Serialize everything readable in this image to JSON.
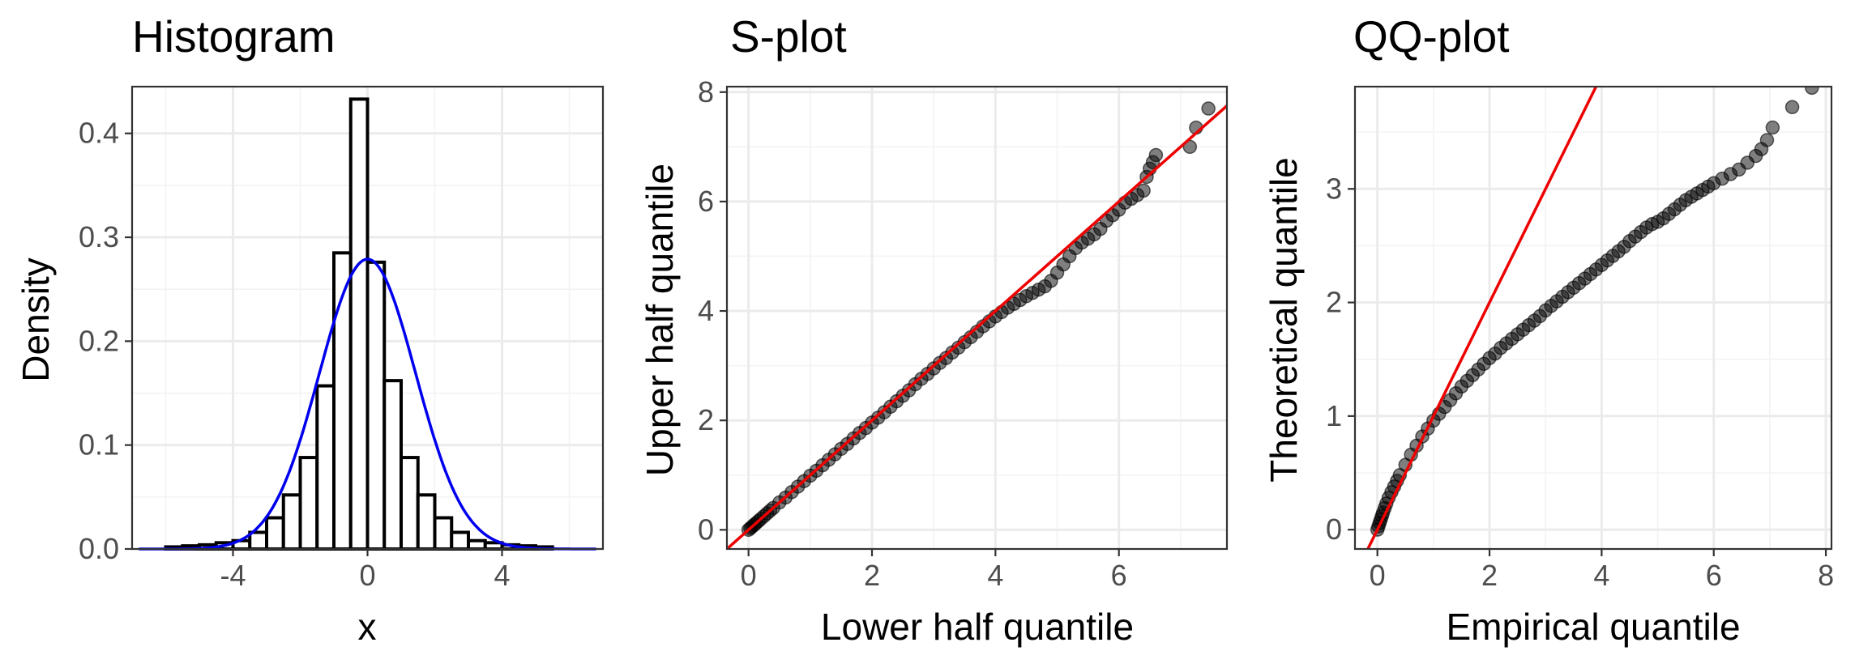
{
  "chart_data": [
    {
      "type": "bar",
      "title": "Histogram",
      "xlabel": "x",
      "ylabel": "Density",
      "xlim": [
        -7.0,
        7.0
      ],
      "ylim": [
        0,
        0.445
      ],
      "xticks": [
        "-4",
        "0",
        "4"
      ],
      "xtick_values": [
        -4,
        0,
        4
      ],
      "yticks": [
        "0.0",
        "0.1",
        "0.2",
        "0.3",
        "0.4"
      ],
      "ytick_values": [
        0,
        0.1,
        0.2,
        0.3,
        0.4
      ],
      "grid": true,
      "bins": [
        {
          "from": -6.0,
          "to": -5.5,
          "density": 0.002
        },
        {
          "from": -5.5,
          "to": -5.0,
          "density": 0.003
        },
        {
          "from": -5.0,
          "to": -4.5,
          "density": 0.004
        },
        {
          "from": -4.5,
          "to": -4.0,
          "density": 0.006
        },
        {
          "from": -4.0,
          "to": -3.5,
          "density": 0.008
        },
        {
          "from": -3.5,
          "to": -3.0,
          "density": 0.016
        },
        {
          "from": -3.0,
          "to": -2.5,
          "density": 0.03
        },
        {
          "from": -2.5,
          "to": -2.0,
          "density": 0.052
        },
        {
          "from": -2.0,
          "to": -1.5,
          "density": 0.088
        },
        {
          "from": -1.5,
          "to": -1.0,
          "density": 0.157
        },
        {
          "from": -1.0,
          "to": -0.5,
          "density": 0.285
        },
        {
          "from": -0.5,
          "to": 0.0,
          "density": 0.433
        },
        {
          "from": 0.0,
          "to": 0.5,
          "density": 0.276
        },
        {
          "from": 0.5,
          "to": 1.0,
          "density": 0.162
        },
        {
          "from": 1.0,
          "to": 1.5,
          "density": 0.088
        },
        {
          "from": 1.5,
          "to": 2.0,
          "density": 0.052
        },
        {
          "from": 2.0,
          "to": 2.5,
          "density": 0.03
        },
        {
          "from": 2.5,
          "to": 3.0,
          "density": 0.016
        },
        {
          "from": 3.0,
          "to": 3.5,
          "density": 0.008
        },
        {
          "from": 3.5,
          "to": 4.0,
          "density": 0.006
        },
        {
          "from": 4.0,
          "to": 4.5,
          "density": 0.004
        },
        {
          "from": 4.5,
          "to": 5.0,
          "density": 0.003
        },
        {
          "from": 5.0,
          "to": 5.5,
          "density": 0.002
        }
      ],
      "density_curve": {
        "distribution": "normal",
        "mean": 0,
        "sd": 1.43,
        "x_range": [
          -6.8,
          6.8
        ],
        "color": "#0000ee"
      },
      "bar_fill": "#ffffff",
      "bar_outline": "#000000"
    },
    {
      "type": "scatter",
      "title": "S-plot",
      "xlabel": "Lower half quantile",
      "ylabel": "Upper half quantile",
      "xlim": [
        -0.35,
        7.75
      ],
      "ylim": [
        -0.35,
        8.1
      ],
      "xticks": [
        "0",
        "2",
        "4",
        "6"
      ],
      "xtick_values": [
        0,
        2,
        4,
        6
      ],
      "yticks": [
        "0",
        "2",
        "4",
        "6",
        "8"
      ],
      "ytick_values": [
        0,
        2,
        4,
        6,
        8
      ],
      "grid": true,
      "points": [
        [
          0.0,
          0.0
        ],
        [
          0.03,
          0.03
        ],
        [
          0.06,
          0.06
        ],
        [
          0.09,
          0.09
        ],
        [
          0.12,
          0.12
        ],
        [
          0.16,
          0.16
        ],
        [
          0.2,
          0.2
        ],
        [
          0.25,
          0.25
        ],
        [
          0.3,
          0.3
        ],
        [
          0.35,
          0.35
        ],
        [
          0.4,
          0.4
        ],
        [
          0.5,
          0.5
        ],
        [
          0.6,
          0.59
        ],
        [
          0.7,
          0.69
        ],
        [
          0.8,
          0.79
        ],
        [
          0.9,
          0.89
        ],
        [
          1.0,
          0.99
        ],
        [
          1.1,
          1.08
        ],
        [
          1.2,
          1.18
        ],
        [
          1.3,
          1.28
        ],
        [
          1.4,
          1.38
        ],
        [
          1.5,
          1.48
        ],
        [
          1.6,
          1.57
        ],
        [
          1.7,
          1.67
        ],
        [
          1.8,
          1.77
        ],
        [
          1.9,
          1.86
        ],
        [
          2.0,
          1.96
        ],
        [
          2.1,
          2.05
        ],
        [
          2.2,
          2.15
        ],
        [
          2.3,
          2.25
        ],
        [
          2.4,
          2.35
        ],
        [
          2.5,
          2.45
        ],
        [
          2.6,
          2.55
        ],
        [
          2.7,
          2.66
        ],
        [
          2.8,
          2.76
        ],
        [
          2.9,
          2.85
        ],
        [
          3.0,
          2.95
        ],
        [
          3.1,
          3.05
        ],
        [
          3.2,
          3.14
        ],
        [
          3.3,
          3.24
        ],
        [
          3.4,
          3.33
        ],
        [
          3.5,
          3.43
        ],
        [
          3.6,
          3.52
        ],
        [
          3.7,
          3.62
        ],
        [
          3.8,
          3.72
        ],
        [
          3.9,
          3.81
        ],
        [
          4.0,
          3.9
        ],
        [
          4.1,
          3.98
        ],
        [
          4.2,
          4.06
        ],
        [
          4.3,
          4.13
        ],
        [
          4.4,
          4.2
        ],
        [
          4.5,
          4.27
        ],
        [
          4.6,
          4.33
        ],
        [
          4.7,
          4.39
        ],
        [
          4.8,
          4.45
        ],
        [
          4.9,
          4.55
        ],
        [
          5.0,
          4.7
        ],
        [
          5.1,
          4.85
        ],
        [
          5.2,
          5.0
        ],
        [
          5.3,
          5.15
        ],
        [
          5.4,
          5.25
        ],
        [
          5.5,
          5.32
        ],
        [
          5.6,
          5.4
        ],
        [
          5.7,
          5.5
        ],
        [
          5.8,
          5.65
        ],
        [
          5.9,
          5.75
        ],
        [
          6.0,
          5.85
        ],
        [
          6.1,
          5.98
        ],
        [
          6.2,
          6.05
        ],
        [
          6.3,
          6.12
        ],
        [
          6.4,
          6.2
        ],
        [
          6.45,
          6.45
        ],
        [
          6.5,
          6.6
        ],
        [
          6.55,
          6.72
        ],
        [
          6.6,
          6.85
        ],
        [
          7.15,
          7.0
        ],
        [
          7.25,
          7.35
        ],
        [
          7.45,
          7.7
        ]
      ],
      "reference_line": {
        "slope": 1,
        "intercept": 0,
        "color": "#ee0000"
      },
      "point_color": "#000000",
      "point_alpha": 0.5
    },
    {
      "type": "scatter",
      "title": "QQ-plot",
      "xlabel": "Empirical quantile",
      "ylabel": "Theoretical quantile",
      "xlim": [
        -0.4,
        8.1
      ],
      "ylim": [
        -0.17,
        3.9
      ],
      "xticks": [
        "0",
        "2",
        "4",
        "6",
        "8"
      ],
      "xtick_values": [
        0,
        2,
        4,
        6,
        8
      ],
      "yticks": [
        "0",
        "1",
        "2",
        "3"
      ],
      "ytick_values": [
        0,
        1,
        2,
        3
      ],
      "grid": true,
      "points": [
        [
          0.0,
          0.0
        ],
        [
          0.02,
          0.03
        ],
        [
          0.04,
          0.06
        ],
        [
          0.06,
          0.09
        ],
        [
          0.08,
          0.12
        ],
        [
          0.1,
          0.15
        ],
        [
          0.13,
          0.19
        ],
        [
          0.16,
          0.23
        ],
        [
          0.2,
          0.28
        ],
        [
          0.25,
          0.33
        ],
        [
          0.3,
          0.38
        ],
        [
          0.35,
          0.43
        ],
        [
          0.4,
          0.48
        ],
        [
          0.5,
          0.57
        ],
        [
          0.6,
          0.66
        ],
        [
          0.7,
          0.74
        ],
        [
          0.8,
          0.82
        ],
        [
          0.9,
          0.89
        ],
        [
          1.0,
          0.96
        ],
        [
          1.1,
          1.02
        ],
        [
          1.2,
          1.08
        ],
        [
          1.3,
          1.14
        ],
        [
          1.4,
          1.2
        ],
        [
          1.5,
          1.26
        ],
        [
          1.6,
          1.31
        ],
        [
          1.7,
          1.36
        ],
        [
          1.8,
          1.41
        ],
        [
          1.9,
          1.46
        ],
        [
          2.0,
          1.51
        ],
        [
          2.1,
          1.55
        ],
        [
          2.2,
          1.6
        ],
        [
          2.3,
          1.64
        ],
        [
          2.4,
          1.68
        ],
        [
          2.5,
          1.72
        ],
        [
          2.6,
          1.76
        ],
        [
          2.7,
          1.8
        ],
        [
          2.8,
          1.84
        ],
        [
          2.9,
          1.88
        ],
        [
          3.0,
          1.93
        ],
        [
          3.1,
          1.97
        ],
        [
          3.2,
          2.01
        ],
        [
          3.3,
          2.05
        ],
        [
          3.4,
          2.09
        ],
        [
          3.5,
          2.13
        ],
        [
          3.6,
          2.17
        ],
        [
          3.7,
          2.21
        ],
        [
          3.8,
          2.25
        ],
        [
          3.9,
          2.29
        ],
        [
          4.0,
          2.33
        ],
        [
          4.1,
          2.37
        ],
        [
          4.2,
          2.41
        ],
        [
          4.3,
          2.45
        ],
        [
          4.4,
          2.49
        ],
        [
          4.5,
          2.54
        ],
        [
          4.6,
          2.58
        ],
        [
          4.7,
          2.62
        ],
        [
          4.8,
          2.66
        ],
        [
          4.9,
          2.69
        ],
        [
          5.0,
          2.71
        ],
        [
          5.1,
          2.74
        ],
        [
          5.2,
          2.78
        ],
        [
          5.3,
          2.82
        ],
        [
          5.4,
          2.86
        ],
        [
          5.5,
          2.9
        ],
        [
          5.6,
          2.93
        ],
        [
          5.7,
          2.96
        ],
        [
          5.8,
          2.99
        ],
        [
          5.9,
          3.02
        ],
        [
          6.0,
          3.05
        ],
        [
          6.15,
          3.09
        ],
        [
          6.3,
          3.13
        ],
        [
          6.45,
          3.17
        ],
        [
          6.6,
          3.23
        ],
        [
          6.75,
          3.29
        ],
        [
          6.85,
          3.35
        ],
        [
          6.95,
          3.43
        ],
        [
          7.05,
          3.54
        ],
        [
          7.4,
          3.72
        ],
        [
          7.75,
          3.89
        ]
      ],
      "reference_line": {
        "slope": 1,
        "intercept": 0,
        "color": "#ee0000"
      },
      "point_color": "#000000",
      "point_alpha": 0.5
    }
  ]
}
